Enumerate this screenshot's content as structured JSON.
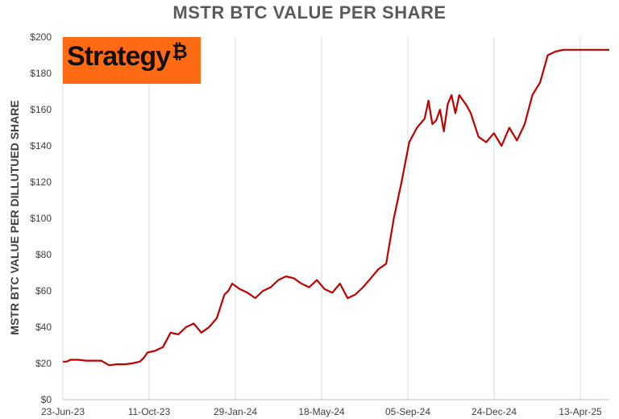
{
  "chart_data": {
    "type": "line",
    "title": "MSTR BTC VALUE PER SHARE",
    "ylabel": "MSTR BTC VALUE PER DILLUTUED SHARE",
    "xlabel": "",
    "ylim": [
      0,
      200
    ],
    "y_ticks": [
      "$0",
      "$20",
      "$40",
      "$60",
      "$80",
      "$100",
      "$120",
      "$140",
      "$160",
      "$180",
      "$200"
    ],
    "x_ticks": [
      "23-Jun-23",
      "11-Oct-23",
      "29-Jan-24",
      "18-May-24",
      "05-Sep-24",
      "24-Dec-24",
      "13-Apr-25"
    ],
    "grid": "vertical",
    "line_color": "#c00000",
    "series": [
      {
        "values_x": [
          0,
          5,
          10,
          20,
          30,
          40,
          50,
          60,
          70,
          80,
          90,
          100,
          105,
          110,
          120,
          125,
          130,
          140,
          150,
          160,
          170,
          180,
          190,
          200,
          210,
          215,
          220,
          230,
          240,
          250,
          260,
          270,
          280,
          290,
          300,
          310,
          320,
          330,
          340,
          350,
          360,
          370,
          380,
          390,
          400,
          410,
          420,
          430,
          440,
          450,
          460,
          470,
          475,
          480,
          485,
          490,
          495,
          500,
          505,
          510,
          515,
          520,
          525,
          530,
          540,
          550,
          560,
          570,
          580,
          590,
          600,
          610,
          620,
          630,
          640,
          650,
          660,
          670,
          680,
          690,
          700,
          710
        ],
        "values_y": [
          21,
          21,
          22,
          22,
          21.5,
          21.5,
          21.5,
          19,
          19.5,
          19.5,
          20,
          21,
          23,
          26,
          27,
          28,
          29,
          37,
          36,
          40,
          42,
          37,
          40,
          45,
          58,
          60,
          64,
          61,
          59,
          56,
          60,
          62,
          66,
          68,
          67,
          64,
          62,
          66,
          61,
          59,
          64,
          56,
          58,
          62,
          67,
          72,
          75,
          100,
          120,
          142,
          150,
          155,
          165,
          152,
          154,
          160,
          148,
          163,
          168,
          158,
          168,
          165,
          162,
          158,
          145,
          142,
          147,
          140,
          150,
          143,
          152,
          168,
          175,
          190,
          192,
          193,
          193,
          193,
          193,
          193,
          193,
          193
        ]
      }
    ]
  },
  "logo": {
    "text": "Strategy",
    "mark": "₿",
    "bg": "#ff6a13"
  }
}
